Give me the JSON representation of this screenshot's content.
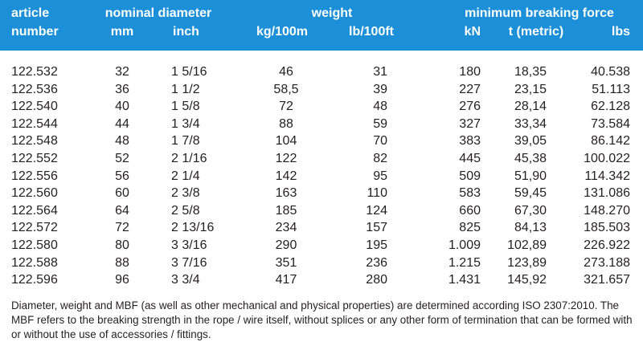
{
  "table": {
    "groups": [
      "article",
      "nominal diameter",
      "weight",
      "minimum breaking force"
    ],
    "columns": [
      "number",
      "mm",
      "inch",
      "kg/100m",
      "lb/100ft",
      "kN",
      "t (metric)",
      "lbs"
    ],
    "rows": [
      [
        "122.532",
        "32",
        "1 5/16",
        "46",
        "31",
        "180",
        "18,35",
        "40.538"
      ],
      [
        "122.536",
        "36",
        "1 1/2",
        "58,5",
        "39",
        "227",
        "23,15",
        "51.113"
      ],
      [
        "122.540",
        "40",
        "1 5/8",
        "72",
        "48",
        "276",
        "28,14",
        "62.128"
      ],
      [
        "122.544",
        "44",
        "1 3/4",
        "88",
        "59",
        "327",
        "33,34",
        "73.584"
      ],
      [
        "122.548",
        "48",
        "1 7/8",
        "104",
        "70",
        "383",
        "39,05",
        "86.142"
      ],
      [
        "122.552",
        "52",
        "2 1/16",
        "122",
        "82",
        "445",
        "45,38",
        "100.022"
      ],
      [
        "122.556",
        "56",
        "2 1/4",
        "142",
        "95",
        "509",
        "51,90",
        "114.342"
      ],
      [
        "122.560",
        "60",
        "2 3/8",
        "163",
        "110",
        "583",
        "59,45",
        "131.086"
      ],
      [
        "122.564",
        "64",
        "2 5/8",
        "185",
        "124",
        "660",
        "67,30",
        "148.270"
      ],
      [
        "122.572",
        "72",
        "2 13/16",
        "234",
        "157",
        "825",
        "84,13",
        "185.503"
      ],
      [
        "122.580",
        "80",
        "3 3/16",
        "290",
        "195",
        "1.009",
        "102,89",
        "226.922"
      ],
      [
        "122.588",
        "88",
        "3 7/16",
        "351",
        "236",
        "1.215",
        "123,89",
        "273.188"
      ],
      [
        "122.596",
        "96",
        "3 3/4",
        "417",
        "280",
        "1.431",
        "145,92",
        "321.657"
      ]
    ]
  },
  "footnote": "Diameter, weight and MBF (as well as other mechanical and physical properties) are determined according ISO 2307:2010. The MBF refers to the breaking strength in the rope / wire itself, without splices or any other form of termination that can be formed with or without the use of accessories / fittings."
}
